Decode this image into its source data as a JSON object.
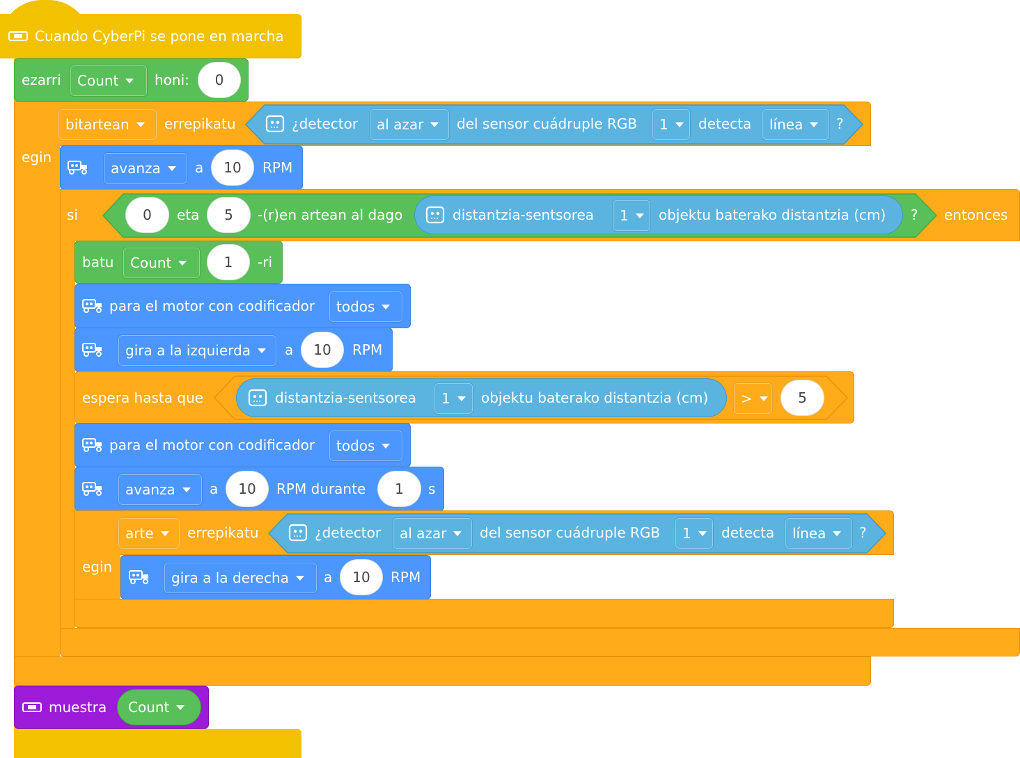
{
  "hat": {
    "label": "Cuando CyberPi se pone en marcha"
  },
  "set_var": {
    "label": "ezarri",
    "variable": "Count",
    "to_label": "honi:",
    "value": "0"
  },
  "while_loop": {
    "mode": "bitartean",
    "repeat_label": "errepikatu",
    "do_label": "egin",
    "condition": {
      "prefix": "¿detector",
      "mode": "al azar",
      "sensor_label": "del sensor cuádruple RGB",
      "index": "1",
      "detects_label": "detecta",
      "target": "línea",
      "suffix": "?"
    }
  },
  "move1": {
    "direction": "avanza",
    "at_label": "a",
    "speed": "10",
    "unit": "RPM"
  },
  "if_block": {
    "if_label": "si",
    "then_label": "entonces",
    "range_low": "0",
    "and_label": "eta",
    "range_high": "5",
    "between_label": "-(r)en artean al dago",
    "sensor_label": "distantzia-sentsorea",
    "sensor_index": "1",
    "measure_label": "objektu baterako distantzia (cm)",
    "suffix": "?"
  },
  "change_var": {
    "label": "batu",
    "variable": "Count",
    "value": "1",
    "suffix": "-ri"
  },
  "stop1": {
    "label": "para el motor con codificador",
    "which": "todos"
  },
  "turn_left": {
    "direction": "gira a la izquierda",
    "at_label": "a",
    "speed": "10",
    "unit": "RPM"
  },
  "wait_until": {
    "label": "espera hasta que",
    "sensor_label": "distantzia-sentsorea",
    "sensor_index": "1",
    "measure_label": "objektu baterako distantzia (cm)",
    "operator": ">",
    "value": "5"
  },
  "stop2": {
    "label": "para el motor con codificador",
    "which": "todos"
  },
  "move_timed": {
    "direction": "avanza",
    "at_label": "a",
    "speed": "10",
    "unit": "RPM durante",
    "duration": "1",
    "seconds": "s"
  },
  "until_loop": {
    "mode": "arte",
    "repeat_label": "errepikatu",
    "do_label": "egin",
    "condition": {
      "prefix": "¿detector",
      "mode": "al azar",
      "sensor_label": "del sensor cuádruple RGB",
      "index": "1",
      "detects_label": "detecta",
      "target": "línea",
      "suffix": "?"
    }
  },
  "turn_right": {
    "direction": "gira a la derecha",
    "at_label": "a",
    "speed": "10",
    "unit": "RPM"
  },
  "show": {
    "label": "muestra",
    "variable": "Count"
  },
  "colors": {
    "event": "#f2c200",
    "control": "#ffab1a",
    "variables": "#59c059",
    "motion": "#4c97ff",
    "sensor": "#5bb3e0",
    "display": "#9b1bd8"
  }
}
